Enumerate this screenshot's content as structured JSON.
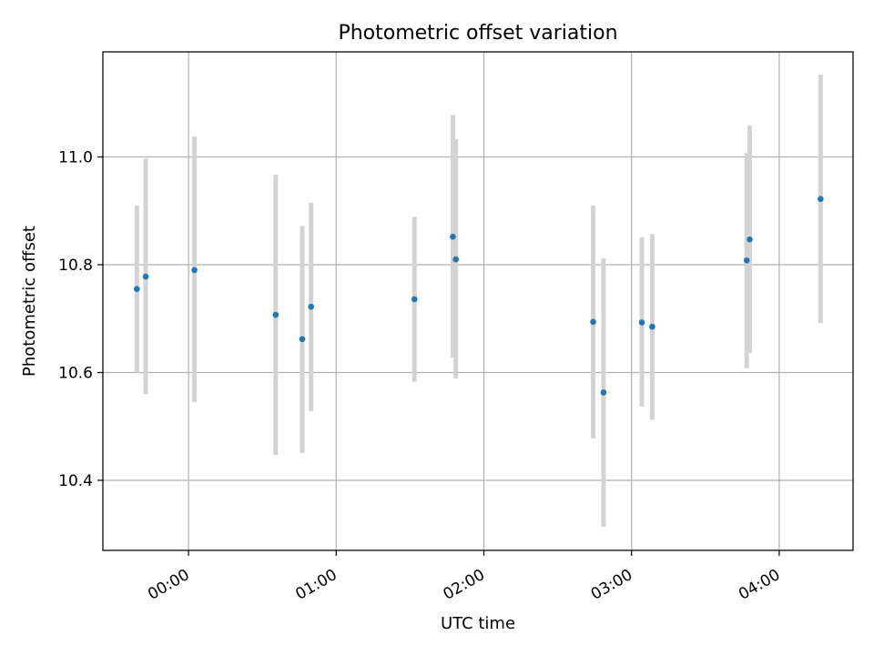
{
  "chart_data": {
    "type": "scatter",
    "title": "Photometric offset variation",
    "xlabel": "UTC time",
    "ylabel": "Photometric offset",
    "x_unit": "hours UTC",
    "xlim": [
      -0.58,
      4.5
    ],
    "ylim": [
      10.27,
      11.195
    ],
    "x_ticks": [
      {
        "value": 0,
        "label": "00:00"
      },
      {
        "value": 1,
        "label": "01:00"
      },
      {
        "value": 2,
        "label": "02:00"
      },
      {
        "value": 3,
        "label": "03:00"
      },
      {
        "value": 4,
        "label": "04:00"
      }
    ],
    "y_ticks": [
      {
        "value": 10.4,
        "label": "10.4"
      },
      {
        "value": 10.6,
        "label": "10.6"
      },
      {
        "value": 10.8,
        "label": "10.8"
      },
      {
        "value": 11.0,
        "label": "11.0"
      }
    ],
    "grid": true,
    "colors": {
      "point": "#1f77b4",
      "errorbar": "#d3d3d3",
      "grid": "#b0b0b0",
      "axes": "#000000"
    },
    "points": [
      {
        "x": -0.35,
        "y": 10.755,
        "ylow": 10.6,
        "yhigh": 10.91
      },
      {
        "x": -0.29,
        "y": 10.778,
        "ylow": 10.56,
        "yhigh": 10.997
      },
      {
        "x": 0.04,
        "y": 10.79,
        "ylow": 10.545,
        "yhigh": 11.038
      },
      {
        "x": 0.59,
        "y": 10.707,
        "ylow": 10.447,
        "yhigh": 10.967
      },
      {
        "x": 0.77,
        "y": 10.662,
        "ylow": 10.451,
        "yhigh": 10.872
      },
      {
        "x": 0.83,
        "y": 10.722,
        "ylow": 10.528,
        "yhigh": 10.915
      },
      {
        "x": 1.53,
        "y": 10.736,
        "ylow": 10.583,
        "yhigh": 10.889
      },
      {
        "x": 1.79,
        "y": 10.852,
        "ylow": 10.628,
        "yhigh": 11.078
      },
      {
        "x": 1.81,
        "y": 10.81,
        "ylow": 10.589,
        "yhigh": 11.033
      },
      {
        "x": 2.74,
        "y": 10.694,
        "ylow": 10.478,
        "yhigh": 10.91
      },
      {
        "x": 2.81,
        "y": 10.563,
        "ylow": 10.314,
        "yhigh": 10.812
      },
      {
        "x": 3.07,
        "y": 10.693,
        "ylow": 10.537,
        "yhigh": 10.851
      },
      {
        "x": 3.14,
        "y": 10.685,
        "ylow": 10.512,
        "yhigh": 10.857
      },
      {
        "x": 3.78,
        "y": 10.808,
        "ylow": 10.608,
        "yhigh": 11.008
      },
      {
        "x": 3.8,
        "y": 10.847,
        "ylow": 10.636,
        "yhigh": 11.058
      },
      {
        "x": 4.28,
        "y": 10.922,
        "ylow": 10.692,
        "yhigh": 11.153
      }
    ]
  }
}
